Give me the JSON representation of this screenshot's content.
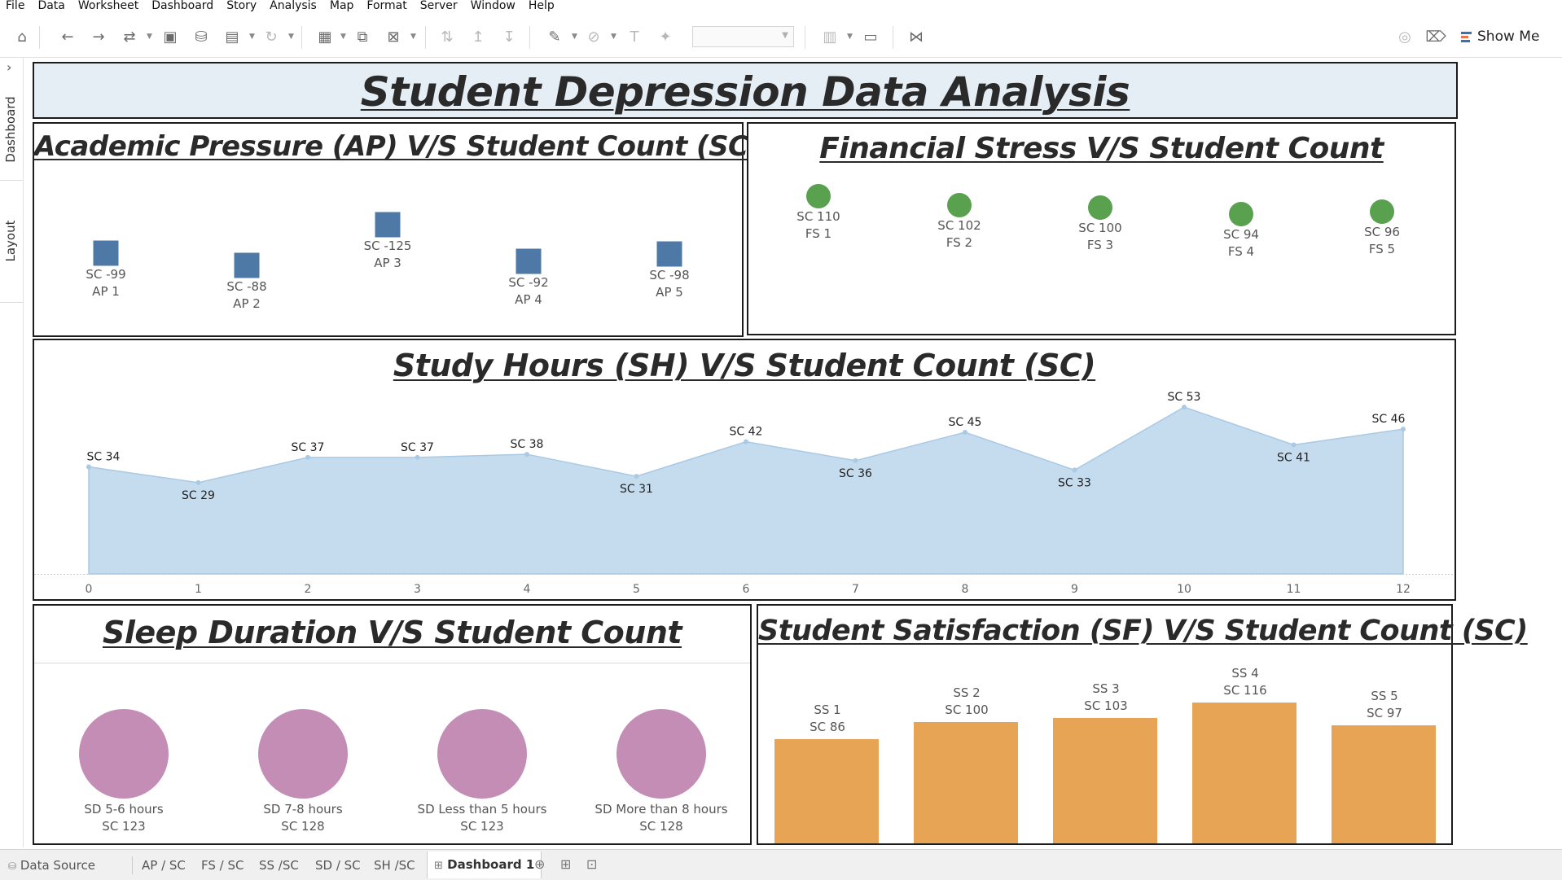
{
  "menu": [
    "File",
    "Data",
    "Worksheet",
    "Dashboard",
    "Story",
    "Analysis",
    "Map",
    "Format",
    "Server",
    "Window",
    "Help"
  ],
  "toolbar": {
    "show_me_label": "Show Me",
    "icons": [
      "home-icon",
      "undo-icon",
      "redo-icon",
      "replay-icon",
      "save-icon",
      "new-datasource-icon",
      "pause-updates-icon",
      "refresh-icon",
      "new-worksheet-icon",
      "duplicate-icon",
      "clear-icon",
      "swap-icon",
      "sort-ascending-icon",
      "sort-descending-icon",
      "highlight-icon",
      "group-icon",
      "label-icon",
      "fix-axes-icon",
      "fit-icon",
      "card-icon",
      "presentation-icon",
      "share-icon",
      "data-guide-icon",
      "format-painter-icon"
    ]
  },
  "siderail": {
    "tabs": [
      "Dashboard",
      "Layout"
    ]
  },
  "dashboard": {
    "title": "Student Depression Data Analysis",
    "title_bg": "#e5eef5"
  },
  "academic_pressure": {
    "title": "Academic Pressure (AP) V/S Student Count (SC)",
    "color": "#4e79a7",
    "items": [
      {
        "sc": "SC -99",
        "ap": "AP 1"
      },
      {
        "sc": "SC -88",
        "ap": "AP 2"
      },
      {
        "sc": "SC -125",
        "ap": "AP 3"
      },
      {
        "sc": "SC -92",
        "ap": "AP 4"
      },
      {
        "sc": "SC -98",
        "ap": "AP 5"
      }
    ]
  },
  "financial_stress": {
    "title": "Financial Stress V/S Student Count",
    "color": "#59a14f",
    "items": [
      {
        "sc": "SC 110",
        "fs": "FS 1"
      },
      {
        "sc": "SC 102",
        "fs": "FS 2"
      },
      {
        "sc": "SC 100",
        "fs": "FS 3"
      },
      {
        "sc": "SC 94",
        "fs": "FS 4"
      },
      {
        "sc": "SC 96",
        "fs": "FS 5"
      }
    ]
  },
  "study_hours": {
    "title": "Study Hours (SH) V/S Student Count (SC)",
    "fill": "#c5dcee",
    "line": "#a9c9e4"
  },
  "sleep_duration": {
    "title": "Sleep Duration V/S Student Count",
    "color": "#c48db5",
    "items": [
      {
        "sd": "SD 5-6 hours",
        "sc": "SC 123"
      },
      {
        "sd": "SD 7-8 hours",
        "sc": "SC 128"
      },
      {
        "sd": "SD Less than 5 hours",
        "sc": "SC 123"
      },
      {
        "sd": "SD More than 8 hours",
        "sc": "SC 128"
      }
    ]
  },
  "satisfaction": {
    "title": "Student Satisfaction (SF)  V/S Student Count (SC)",
    "color": "#e8a455",
    "items": [
      {
        "ss": "SS 1",
        "sc": "SC 86"
      },
      {
        "ss": "SS 2",
        "sc": "SC 100"
      },
      {
        "ss": "SS 3",
        "sc": "SC 103"
      },
      {
        "ss": "SS 4",
        "sc": "SC 116"
      },
      {
        "ss": "SS 5",
        "sc": "SC 97"
      }
    ]
  },
  "tabs": [
    {
      "label": "Data Source",
      "icon": "datasource-icon"
    },
    {
      "label": "AP / SC"
    },
    {
      "label": "FS / SC"
    },
    {
      "label": "SS /SC"
    },
    {
      "label": "SD / SC"
    },
    {
      "label": "SH /SC"
    },
    {
      "label": "Dashboard 1",
      "active": true,
      "icon": "dashboard-icon"
    }
  ],
  "chart_data": [
    {
      "type": "scatter",
      "title": "Academic Pressure (AP) V/S Student Count (SC)",
      "categories": [
        "AP 1",
        "AP 2",
        "AP 3",
        "AP 4",
        "AP 5"
      ],
      "values": [
        -99,
        -88,
        -125,
        -92,
        -98
      ],
      "series": [
        {
          "values": [
            -99,
            -88,
            -125,
            -92,
            -98
          ]
        }
      ]
    },
    {
      "type": "scatter",
      "title": "Financial Stress V/S Student Count",
      "categories": [
        "FS 1",
        "FS 2",
        "FS 3",
        "FS 4",
        "FS 5"
      ],
      "values": [
        110,
        102,
        100,
        94,
        96
      ]
    },
    {
      "type": "area",
      "title": "Study Hours (SH) V/S Student Count (SC)",
      "x": [
        0,
        1,
        2,
        3,
        4,
        5,
        6,
        7,
        8,
        9,
        10,
        11,
        12
      ],
      "values": [
        34,
        29,
        37,
        37,
        38,
        31,
        42,
        36,
        45,
        33,
        53,
        41,
        46
      ],
      "labels": [
        "SC 34",
        "SC 29",
        "SC 37",
        "SC 37",
        "SC 38",
        "SC 31",
        "SC 42",
        "SC 36",
        "SC 45",
        "SC 33",
        "SC 53",
        "SC 41",
        "SC 46"
      ],
      "ylim": [
        0,
        60
      ]
    },
    {
      "type": "scatter",
      "title": "Sleep Duration V/S Student Count",
      "categories": [
        "SD 5-6 hours",
        "SD 7-8 hours",
        "SD Less than 5 hours",
        "SD More than 8 hours"
      ],
      "values": [
        123,
        128,
        123,
        128
      ]
    },
    {
      "type": "bar",
      "title": "Student Satisfaction (SF)  V/S Student Count (SC)",
      "categories": [
        "SS 1",
        "SS 2",
        "SS 3",
        "SS 4",
        "SS 5"
      ],
      "values": [
        86,
        100,
        103,
        116,
        97
      ],
      "ylim": [
        0,
        116
      ]
    }
  ]
}
